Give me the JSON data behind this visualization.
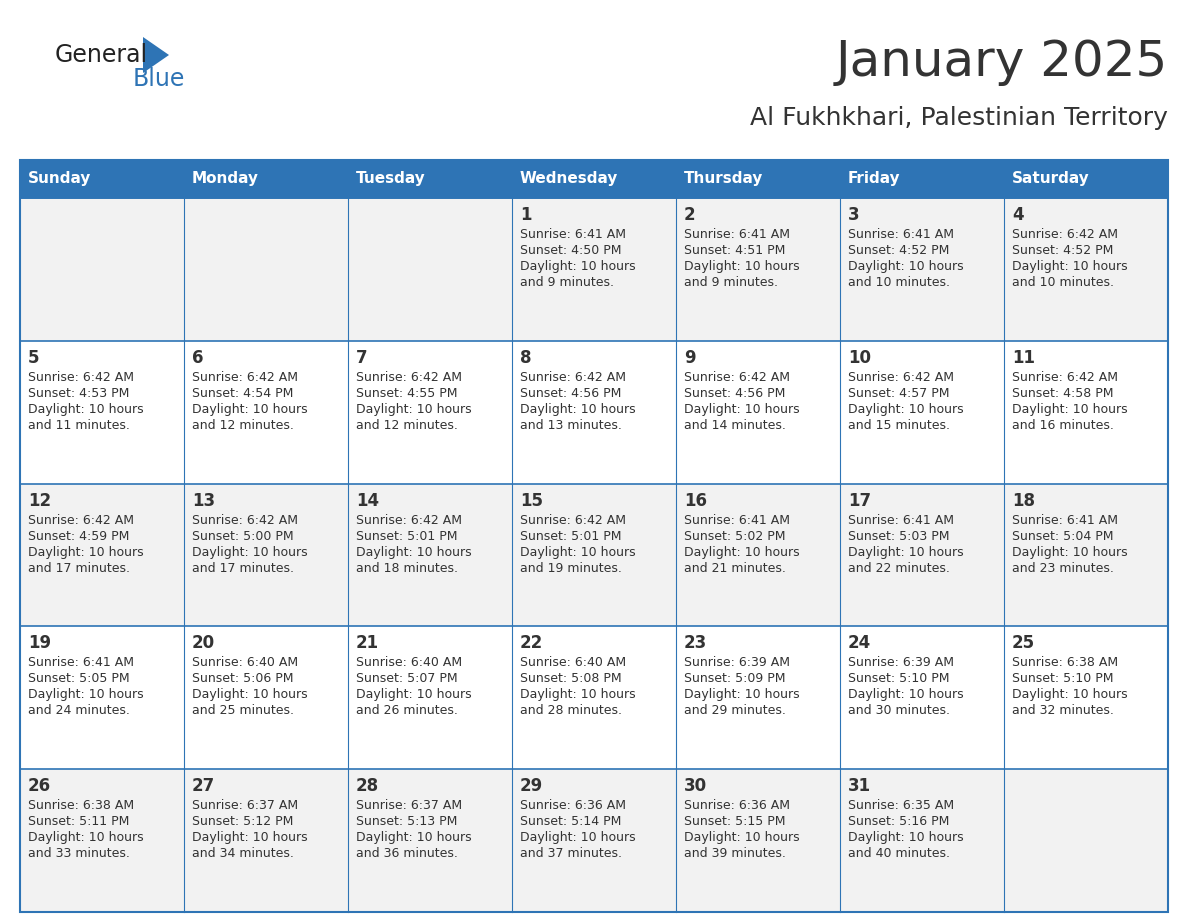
{
  "title": "January 2025",
  "subtitle": "Al Fukhkhari, Palestinian Territory",
  "header_color": "#2E74B5",
  "header_text_color": "#FFFFFF",
  "cell_bg_even": "#F2F2F2",
  "cell_bg_odd": "#FFFFFF",
  "border_color": "#2E74B5",
  "text_color": "#333333",
  "days_of_week": [
    "Sunday",
    "Monday",
    "Tuesday",
    "Wednesday",
    "Thursday",
    "Friday",
    "Saturday"
  ],
  "weeks": [
    [
      {
        "day": "",
        "sunrise": "",
        "sunset": "",
        "daylight": ""
      },
      {
        "day": "",
        "sunrise": "",
        "sunset": "",
        "daylight": ""
      },
      {
        "day": "",
        "sunrise": "",
        "sunset": "",
        "daylight": ""
      },
      {
        "day": "1",
        "sunrise": "6:41 AM",
        "sunset": "4:50 PM",
        "daylight": "10 hours and 9 minutes."
      },
      {
        "day": "2",
        "sunrise": "6:41 AM",
        "sunset": "4:51 PM",
        "daylight": "10 hours and 9 minutes."
      },
      {
        "day": "3",
        "sunrise": "6:41 AM",
        "sunset": "4:52 PM",
        "daylight": "10 hours and 10 minutes."
      },
      {
        "day": "4",
        "sunrise": "6:42 AM",
        "sunset": "4:52 PM",
        "daylight": "10 hours and 10 minutes."
      }
    ],
    [
      {
        "day": "5",
        "sunrise": "6:42 AM",
        "sunset": "4:53 PM",
        "daylight": "10 hours and 11 minutes."
      },
      {
        "day": "6",
        "sunrise": "6:42 AM",
        "sunset": "4:54 PM",
        "daylight": "10 hours and 12 minutes."
      },
      {
        "day": "7",
        "sunrise": "6:42 AM",
        "sunset": "4:55 PM",
        "daylight": "10 hours and 12 minutes."
      },
      {
        "day": "8",
        "sunrise": "6:42 AM",
        "sunset": "4:56 PM",
        "daylight": "10 hours and 13 minutes."
      },
      {
        "day": "9",
        "sunrise": "6:42 AM",
        "sunset": "4:56 PM",
        "daylight": "10 hours and 14 minutes."
      },
      {
        "day": "10",
        "sunrise": "6:42 AM",
        "sunset": "4:57 PM",
        "daylight": "10 hours and 15 minutes."
      },
      {
        "day": "11",
        "sunrise": "6:42 AM",
        "sunset": "4:58 PM",
        "daylight": "10 hours and 16 minutes."
      }
    ],
    [
      {
        "day": "12",
        "sunrise": "6:42 AM",
        "sunset": "4:59 PM",
        "daylight": "10 hours and 17 minutes."
      },
      {
        "day": "13",
        "sunrise": "6:42 AM",
        "sunset": "5:00 PM",
        "daylight": "10 hours and 17 minutes."
      },
      {
        "day": "14",
        "sunrise": "6:42 AM",
        "sunset": "5:01 PM",
        "daylight": "10 hours and 18 minutes."
      },
      {
        "day": "15",
        "sunrise": "6:42 AM",
        "sunset": "5:01 PM",
        "daylight": "10 hours and 19 minutes."
      },
      {
        "day": "16",
        "sunrise": "6:41 AM",
        "sunset": "5:02 PM",
        "daylight": "10 hours and 21 minutes."
      },
      {
        "day": "17",
        "sunrise": "6:41 AM",
        "sunset": "5:03 PM",
        "daylight": "10 hours and 22 minutes."
      },
      {
        "day": "18",
        "sunrise": "6:41 AM",
        "sunset": "5:04 PM",
        "daylight": "10 hours and 23 minutes."
      }
    ],
    [
      {
        "day": "19",
        "sunrise": "6:41 AM",
        "sunset": "5:05 PM",
        "daylight": "10 hours and 24 minutes."
      },
      {
        "day": "20",
        "sunrise": "6:40 AM",
        "sunset": "5:06 PM",
        "daylight": "10 hours and 25 minutes."
      },
      {
        "day": "21",
        "sunrise": "6:40 AM",
        "sunset": "5:07 PM",
        "daylight": "10 hours and 26 minutes."
      },
      {
        "day": "22",
        "sunrise": "6:40 AM",
        "sunset": "5:08 PM",
        "daylight": "10 hours and 28 minutes."
      },
      {
        "day": "23",
        "sunrise": "6:39 AM",
        "sunset": "5:09 PM",
        "daylight": "10 hours and 29 minutes."
      },
      {
        "day": "24",
        "sunrise": "6:39 AM",
        "sunset": "5:10 PM",
        "daylight": "10 hours and 30 minutes."
      },
      {
        "day": "25",
        "sunrise": "6:38 AM",
        "sunset": "5:10 PM",
        "daylight": "10 hours and 32 minutes."
      }
    ],
    [
      {
        "day": "26",
        "sunrise": "6:38 AM",
        "sunset": "5:11 PM",
        "daylight": "10 hours and 33 minutes."
      },
      {
        "day": "27",
        "sunrise": "6:37 AM",
        "sunset": "5:12 PM",
        "daylight": "10 hours and 34 minutes."
      },
      {
        "day": "28",
        "sunrise": "6:37 AM",
        "sunset": "5:13 PM",
        "daylight": "10 hours and 36 minutes."
      },
      {
        "day": "29",
        "sunrise": "6:36 AM",
        "sunset": "5:14 PM",
        "daylight": "10 hours and 37 minutes."
      },
      {
        "day": "30",
        "sunrise": "6:36 AM",
        "sunset": "5:15 PM",
        "daylight": "10 hours and 39 minutes."
      },
      {
        "day": "31",
        "sunrise": "6:35 AM",
        "sunset": "5:16 PM",
        "daylight": "10 hours and 40 minutes."
      },
      {
        "day": "",
        "sunrise": "",
        "sunset": "",
        "daylight": ""
      }
    ]
  ],
  "logo_text1": "General",
  "logo_text2": "Blue",
  "logo_color1": "#222222",
  "logo_color2": "#2E74B5",
  "title_fontsize": 36,
  "subtitle_fontsize": 18,
  "header_fontsize": 11,
  "day_num_fontsize": 12,
  "cell_text_fontsize": 9
}
